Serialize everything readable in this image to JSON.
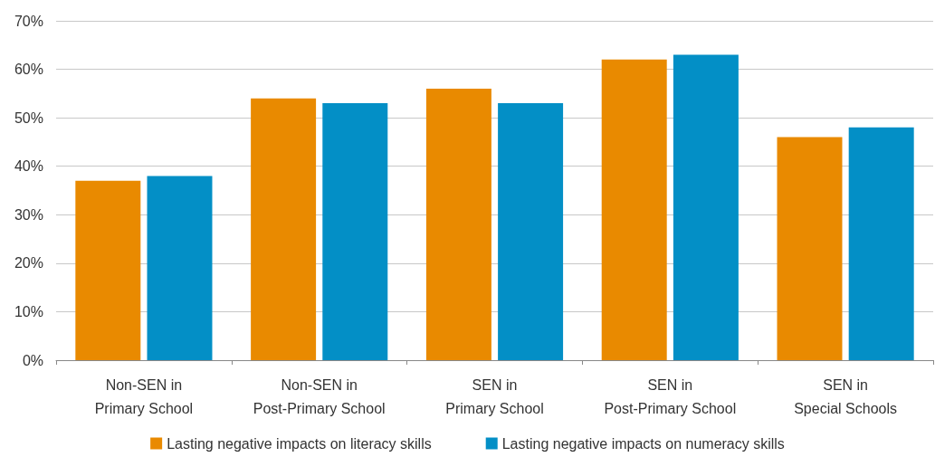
{
  "chart_data": {
    "type": "bar",
    "categories": [
      "Non-SEN in\nPrimary School",
      "Non-SEN in\nPost-Primary School",
      "SEN in\nPrimary School",
      "SEN in\nPost-Primary School",
      "SEN in\nSpecial Schools"
    ],
    "series": [
      {
        "name": "Lasting negative impacts on literacy skills",
        "color": "#e98a00",
        "values": [
          37,
          54,
          56,
          62,
          46
        ]
      },
      {
        "name": "Lasting negative impacts on numeracy skills",
        "color": "#038fc6",
        "values": [
          38,
          53,
          53,
          63,
          48
        ]
      }
    ],
    "ylim": [
      0,
      70
    ],
    "yticks": [
      {
        "value": 0,
        "label": "0%"
      },
      {
        "value": 10,
        "label": "10%"
      },
      {
        "value": 20,
        "label": "20%"
      },
      {
        "value": 30,
        "label": "30%"
      },
      {
        "value": 40,
        "label": "40%"
      },
      {
        "value": 50,
        "label": "50%"
      },
      {
        "value": 60,
        "label": "60%"
      },
      {
        "value": 70,
        "label": "70%"
      }
    ],
    "grid": "y",
    "legend": "bottom"
  }
}
